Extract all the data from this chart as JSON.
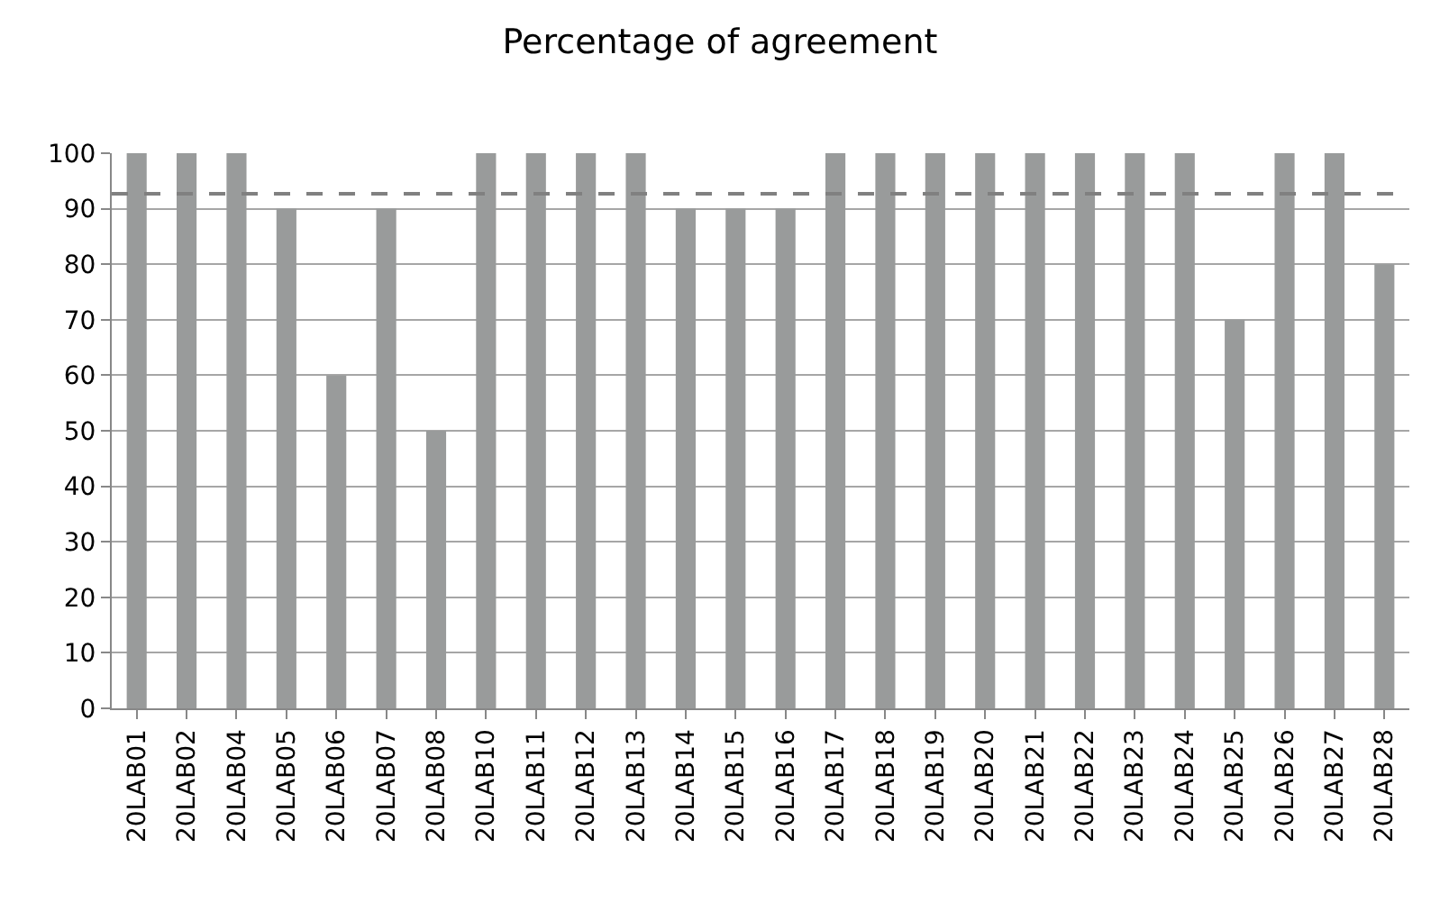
{
  "chart_data": {
    "type": "bar",
    "title": "Percentage of agreement",
    "categories": [
      "20LAB01",
      "20LAB02",
      "20LAB04",
      "20LAB05",
      "20LAB06",
      "20LAB07",
      "20LAB08",
      "20LAB10",
      "20LAB11",
      "20LAB12",
      "20LAB13",
      "20LAB14",
      "20LAB15",
      "20LAB16",
      "20LAB17",
      "20LAB18",
      "20LAB19",
      "20LAB20",
      "20LAB21",
      "20LAB22",
      "20LAB23",
      "20LAB24",
      "20LAB25",
      "20LAB26",
      "20LAB27",
      "20LAB28"
    ],
    "values": [
      100,
      100,
      100,
      90,
      60,
      90,
      50,
      100,
      100,
      100,
      100,
      90,
      90,
      90,
      100,
      100,
      100,
      100,
      100,
      100,
      100,
      100,
      70,
      100,
      100,
      80
    ],
    "color": "#999b9b",
    "ylim": [
      0,
      100
    ],
    "yticks": [
      0,
      10,
      20,
      30,
      40,
      50,
      60,
      70,
      80,
      90,
      100
    ],
    "grid": "y",
    "ref_lines": [
      {
        "axis": "y",
        "value": 92.7,
        "color": "#808080",
        "line_style": "dashed"
      }
    ]
  }
}
